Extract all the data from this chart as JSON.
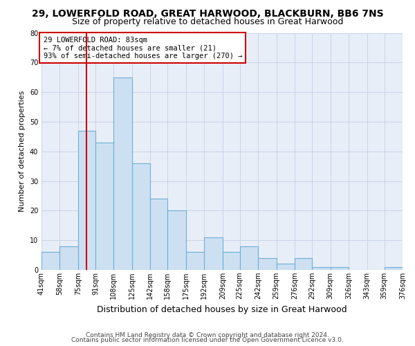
{
  "title": "29, LOWERFOLD ROAD, GREAT HARWOOD, BLACKBURN, BB6 7NS",
  "subtitle": "Size of property relative to detached houses in Great Harwood",
  "xlabel": "Distribution of detached houses by size in Great Harwood",
  "ylabel": "Number of detached properties",
  "footnote1": "Contains HM Land Registry data © Crown copyright and database right 2024.",
  "footnote2": "Contains public sector information licensed under the Open Government Licence v3.0.",
  "annotation_title": "29 LOWERFOLD ROAD: 83sqm",
  "annotation_line1": "← 7% of detached houses are smaller (21)",
  "annotation_line2": "93% of semi-detached houses are larger (270) →",
  "property_size": 83,
  "bin_edges": [
    41,
    58,
    75,
    91,
    108,
    125,
    142,
    158,
    175,
    192,
    209,
    225,
    242,
    259,
    276,
    292,
    309,
    326,
    343,
    359,
    376
  ],
  "bin_labels": [
    "41sqm",
    "58sqm",
    "75sqm",
    "91sqm",
    "108sqm",
    "125sqm",
    "142sqm",
    "158sqm",
    "175sqm",
    "192sqm",
    "209sqm",
    "225sqm",
    "242sqm",
    "259sqm",
    "276sqm",
    "292sqm",
    "309sqm",
    "326sqm",
    "343sqm",
    "359sqm",
    "376sqm"
  ],
  "bar_heights": [
    6,
    8,
    47,
    43,
    65,
    36,
    24,
    20,
    6,
    11,
    6,
    8,
    4,
    2,
    4,
    1,
    1,
    0,
    0,
    1
  ],
  "bar_color": "#cde0f2",
  "bar_edge_color": "#6aaed6",
  "bar_edge_width": 0.8,
  "grid_color": "#c8d4e8",
  "background_color": "#e8eef8",
  "vline_color": "#cc0000",
  "vline_x": 83,
  "ylim": [
    0,
    80
  ],
  "yticks": [
    0,
    10,
    20,
    30,
    40,
    50,
    60,
    70,
    80
  ],
  "annotation_box_color": "#ffffff",
  "annotation_box_edge": "#cc0000",
  "annotation_fontsize": 7.5,
  "title_fontsize": 10,
  "subtitle_fontsize": 9,
  "ylabel_fontsize": 8,
  "xlabel_fontsize": 9,
  "tick_fontsize": 7,
  "footnote_fontsize": 6.5
}
